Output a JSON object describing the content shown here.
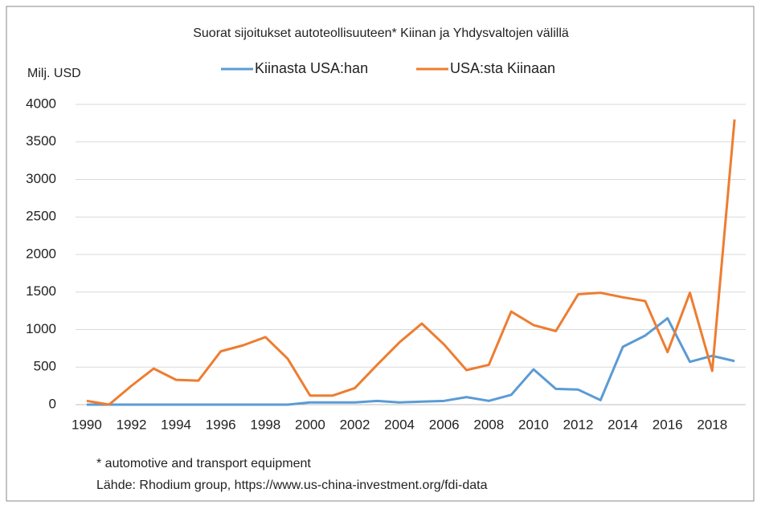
{
  "chart_data": {
    "type": "line",
    "title": "Suorat sijoitukset autoteollisuuteen* Kiinan ja Yhdysvaltojen välillä",
    "y_label": "Milj. USD",
    "notes": [
      "* automotive and transport equipment",
      "Lähde: Rhodium group, https://www.us-china-investment.org/fdi-data"
    ],
    "x": [
      1990,
      1991,
      1992,
      1993,
      1994,
      1995,
      1996,
      1997,
      1998,
      1999,
      2000,
      2001,
      2002,
      2003,
      2004,
      2005,
      2006,
      2007,
      2008,
      2009,
      2010,
      2011,
      2012,
      2013,
      2014,
      2015,
      2016,
      2017,
      2018,
      2019
    ],
    "series": [
      {
        "name": "Kiinasta USA:han",
        "color": "#5b9bd5",
        "values": [
          0,
          0,
          0,
          0,
          0,
          0,
          0,
          0,
          0,
          0,
          30,
          30,
          30,
          50,
          30,
          40,
          50,
          100,
          50,
          130,
          470,
          210,
          200,
          60,
          770,
          920,
          1150,
          570,
          650,
          580
        ]
      },
      {
        "name": "USA:sta Kiinaan",
        "color": "#ed7d31",
        "values": [
          50,
          0,
          250,
          480,
          330,
          320,
          710,
          790,
          900,
          610,
          120,
          120,
          220,
          530,
          830,
          1080,
          800,
          460,
          530,
          1240,
          1060,
          980,
          1470,
          1490,
          1430,
          1380,
          700,
          1490,
          450,
          3800
        ]
      }
    ],
    "xlim": [
      1989.5,
      2019.5
    ],
    "xticks": [
      1990,
      1992,
      1994,
      1996,
      1998,
      2000,
      2002,
      2004,
      2006,
      2008,
      2010,
      2012,
      2014,
      2016,
      2018
    ],
    "ylim": [
      0,
      4000
    ],
    "yticks": [
      0,
      500,
      1000,
      1500,
      2000,
      2500,
      3000,
      3500,
      4000
    ],
    "grid": true,
    "legend": "top"
  }
}
